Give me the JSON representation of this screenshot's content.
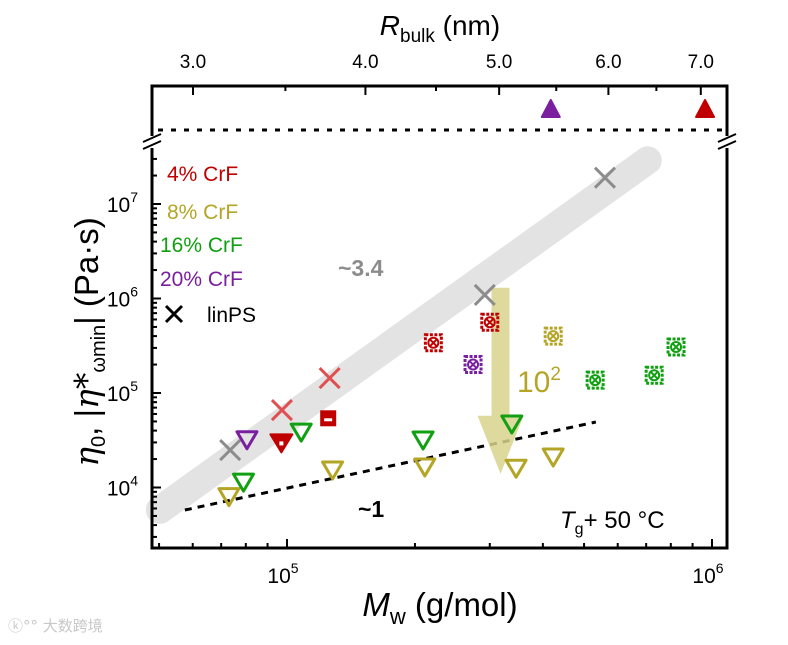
{
  "chart_data": {
    "type": "scatter",
    "xlabel": {
      "main": "M",
      "sub": "w",
      "rest": " (g/mol)"
    },
    "ylabel": {
      "eta0": "η",
      "eta0_sub": "0",
      "sep": ", |",
      "star": "η*",
      "sub": "ωmin",
      "rest": "| (Pa·s)"
    },
    "top_label": {
      "main": "R",
      "sub": "bulk",
      "rest": " (nm)"
    },
    "x_scale": "log",
    "y_scale": "log",
    "xlim": [
      48000,
      1080000
    ],
    "ylim": [
      2300,
      47000000
    ],
    "x_ticks": [
      {
        "value": 100000,
        "base": "10",
        "exp": "5"
      },
      {
        "value": 1000000,
        "base": "10",
        "exp": "6"
      }
    ],
    "y_ticks": [
      {
        "value": 10000,
        "base": "10",
        "exp": "4"
      },
      {
        "value": 100000,
        "base": "10",
        "exp": "5"
      },
      {
        "value": 1000000,
        "base": "10",
        "exp": "6"
      },
      {
        "value": 10000000,
        "base": "10",
        "exp": "7"
      }
    ],
    "top_ticks": [
      "3.0",
      "4.0",
      "5.0",
      "6.0",
      "7.0"
    ],
    "top_tick_values": [
      3.0,
      4.0,
      5.0,
      6.0,
      7.0
    ],
    "top_minor_values": [
      3.5,
      4.5,
      5.5,
      6.5
    ],
    "legend": [
      {
        "label": "4% CrF",
        "color": "#c00000"
      },
      {
        "label": "8% CrF",
        "color": "#b5a526"
      },
      {
        "label": "16% CrF",
        "color": "#11a011"
      },
      {
        "label": "20% CrF",
        "color": "#7a1fa0"
      },
      {
        "label": "linPS",
        "color": "#000000",
        "marker": "x"
      }
    ],
    "legend_placement": "top-left",
    "series": [
      {
        "name": "linPS",
        "color": "#8c8c8c",
        "marker": "x",
        "points": [
          [
            73500,
            24900
          ],
          [
            292000,
            1090000
          ],
          [
            560000,
            19000000
          ]
        ]
      },
      {
        "name": "4% CrF linear",
        "color": "#e05050",
        "marker": "x",
        "points": [
          [
            97300,
            66000
          ],
          [
            126000,
            144000
          ]
        ]
      },
      {
        "name": "4% CrF",
        "color": "#c00000",
        "marker": "crossed-square",
        "points": [
          [
            221000,
            340000
          ],
          [
            300000,
            560000
          ]
        ]
      },
      {
        "name": "4% CrF",
        "color": "#c00000",
        "marker": "half-square",
        "points": [
          [
            125000,
            54000
          ]
        ]
      },
      {
        "name": "4% CrF",
        "color": "#c00000",
        "marker": "filled-down-triangle",
        "points": [
          [
            97000,
            30000
          ]
        ]
      },
      {
        "name": "20% CrF",
        "color": "#7a1fa0",
        "marker": "down-triangle",
        "points": [
          [
            80500,
            32000
          ]
        ]
      },
      {
        "name": "20% CrF",
        "color": "#7a1fa0",
        "marker": "crossed-square",
        "points": [
          [
            274000,
            200000
          ]
        ]
      },
      {
        "name": "8% CrF",
        "color": "#b5a526",
        "marker": "crossed-square",
        "points": [
          [
            423000,
            400000
          ]
        ]
      },
      {
        "name": "8% CrF",
        "color": "#b5a526",
        "marker": "down-triangle",
        "points": [
          [
            73000,
            8000
          ],
          [
            128000,
            15300
          ],
          [
            211000,
            16500
          ],
          [
            346000,
            16000
          ],
          [
            423000,
            21000
          ]
        ]
      },
      {
        "name": "16% CrF",
        "color": "#11a011",
        "marker": "down-triangle",
        "points": [
          [
            79000,
            11400
          ],
          [
            108000,
            38600
          ],
          [
            209000,
            31800
          ],
          [
            338000,
            47000
          ]
        ]
      },
      {
        "name": "16% CrF",
        "color": "#11a011",
        "marker": "crossed-square",
        "points": [
          [
            531000,
            137000
          ],
          [
            731000,
            154000
          ],
          [
            823000,
            307000
          ]
        ]
      }
    ],
    "top_points": [
      {
        "name": "20% CrF",
        "color": "#7a1fa0",
        "R": 5.45
      },
      {
        "name": "4% CrF",
        "color": "#c00000",
        "R": 7.05
      }
    ],
    "guides": {
      "band": {
        "from": [
          50200,
          5800
        ],
        "to": [
          706000,
          29000000
        ],
        "label": "~3.4",
        "color": "#e3e3e3",
        "label_color": "#8c8c8c"
      },
      "dashed": {
        "from": [
          57500,
          5780
        ],
        "to": [
          533000,
          49300
        ],
        "label": "~1"
      },
      "arrow": {
        "x": 318000,
        "from": 1300000,
        "to": 14000,
        "label_base": "10",
        "label_exp": "2",
        "color": "#d8d28c",
        "label_color": "#b5a526"
      }
    },
    "annotation": {
      "T": "T",
      "sub": "g",
      "rest": "+ 50 °C"
    }
  },
  "watermark": "大数跨境"
}
